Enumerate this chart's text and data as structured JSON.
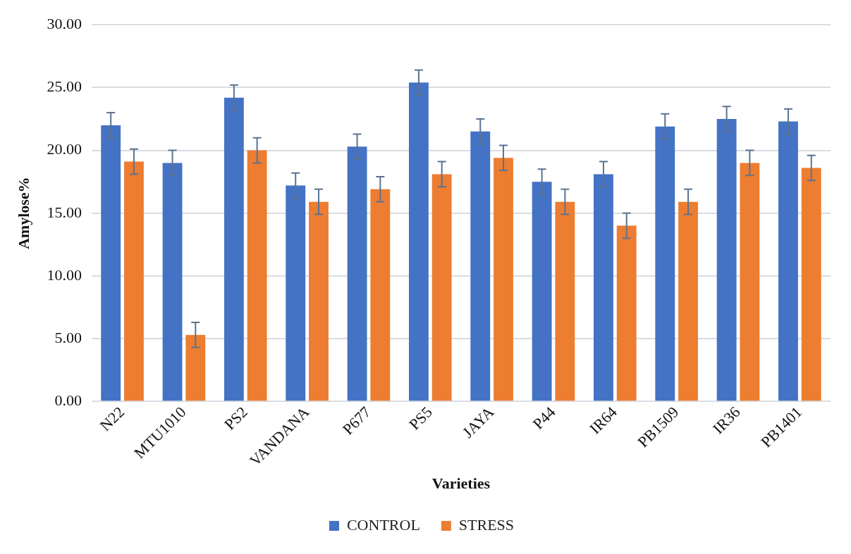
{
  "chart_data": {
    "type": "bar",
    "xlabel": "Varieties",
    "ylabel": "Amylose%",
    "categories": [
      "N22",
      "MTU1010",
      "PS2",
      "VANDANA",
      "P677",
      "PS5",
      "JAYA",
      "P44",
      "IR64",
      "PB1509",
      "IR36",
      "PB1401"
    ],
    "series": [
      {
        "name": "CONTROL",
        "color": "#4472c4",
        "values": [
          22.0,
          19.0,
          24.2,
          17.2,
          20.3,
          25.4,
          21.5,
          17.5,
          18.1,
          21.9,
          22.5,
          22.3
        ],
        "errors": [
          1.0,
          1.0,
          1.0,
          1.0,
          1.0,
          1.0,
          1.0,
          1.0,
          1.0,
          1.0,
          1.0,
          1.0
        ]
      },
      {
        "name": "STRESS",
        "color": "#ed7d31",
        "values": [
          19.1,
          5.3,
          20.0,
          15.9,
          16.9,
          18.1,
          19.4,
          15.9,
          14.0,
          15.9,
          19.0,
          18.6
        ],
        "errors": [
          1.0,
          1.0,
          1.0,
          1.0,
          1.0,
          1.0,
          1.0,
          1.0,
          1.0,
          1.0,
          1.0,
          1.0
        ]
      }
    ],
    "ylim": [
      0,
      30
    ],
    "yticks": [
      {
        "value": 0,
        "label": "0.00"
      },
      {
        "value": 5,
        "label": "5.00"
      },
      {
        "value": 10,
        "label": "10.00"
      },
      {
        "value": 15,
        "label": "15.00"
      },
      {
        "value": 20,
        "label": "20.00"
      },
      {
        "value": 25,
        "label": "25.00"
      },
      {
        "value": 30,
        "label": "30.00"
      }
    ],
    "grid": "y",
    "legend": "bottom"
  }
}
